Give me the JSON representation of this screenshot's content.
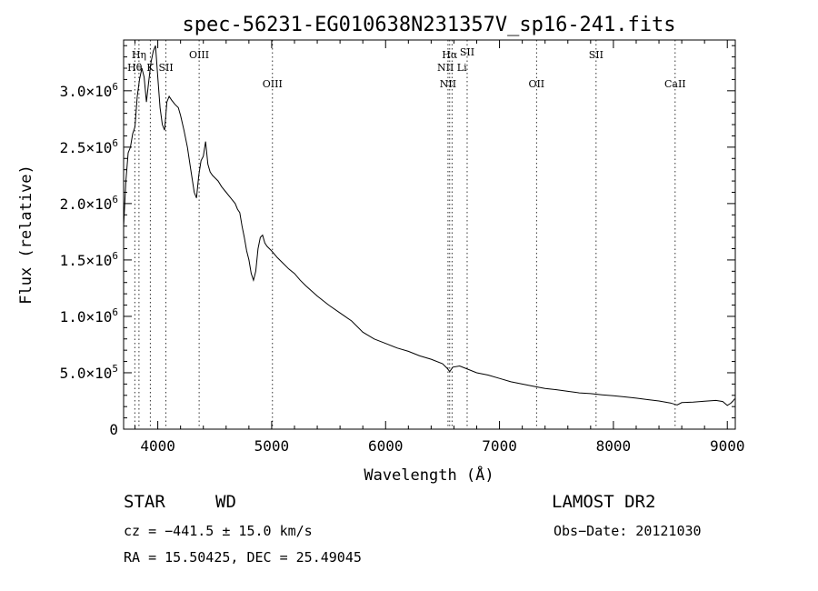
{
  "chart_data": {
    "type": "line",
    "title": "spec-56231-EG010638N231357V_sp16-241.fits",
    "xlabel": "Wavelength (Å)",
    "ylabel": "Flux (relative)",
    "xlim": [
      3700,
      9070
    ],
    "ylim": [
      0,
      3450000
    ],
    "xticks": [
      4000,
      5000,
      6000,
      7000,
      8000,
      9000
    ],
    "xtick_labels": [
      "4000",
      "5000",
      "6000",
      "7000",
      "8000",
      "9000"
    ],
    "yticks": [
      {
        "value": 0,
        "mant": "0",
        "exp": ""
      },
      {
        "value": 500000,
        "mant": "5.0×10",
        "exp": "5"
      },
      {
        "value": 1000000,
        "mant": "1.0×10",
        "exp": "6"
      },
      {
        "value": 1500000,
        "mant": "1.5×10",
        "exp": "6"
      },
      {
        "value": 2000000,
        "mant": "2.0×10",
        "exp": "6"
      },
      {
        "value": 2500000,
        "mant": "2.5×10",
        "exp": "6"
      },
      {
        "value": 3000000,
        "mant": "3.0×10",
        "exp": "6"
      }
    ],
    "series": [
      {
        "x": [
          3700,
          3720,
          3740,
          3760,
          3780,
          3800,
          3820,
          3840,
          3860,
          3880,
          3900,
          3920,
          3940,
          3960,
          3980,
          4000,
          4020,
          4040,
          4060,
          4080,
          4100,
          4120,
          4150,
          4180,
          4200,
          4230,
          4260,
          4290,
          4320,
          4340,
          4360,
          4380,
          4400,
          4420,
          4440,
          4460,
          4480,
          4500,
          4530,
          4560,
          4600,
          4640,
          4680,
          4700,
          4720,
          4740,
          4760,
          4780,
          4800,
          4820,
          4840,
          4860,
          4880,
          4900,
          4920,
          4940,
          4960,
          4980,
          5000,
          5050,
          5100,
          5150,
          5200,
          5250,
          5300,
          5400,
          5500,
          5600,
          5700,
          5800,
          5900,
          6000,
          6100,
          6200,
          6300,
          6400,
          6500,
          6540,
          6563,
          6590,
          6650,
          6700,
          6800,
          6900,
          7000,
          7100,
          7200,
          7300,
          7400,
          7500,
          7600,
          7700,
          7800,
          7900,
          8000,
          8100,
          8200,
          8300,
          8400,
          8500,
          8540,
          8560,
          8600,
          8700,
          8800,
          8900,
          8960,
          9000,
          9030,
          9050,
          9065
        ],
        "y": [
          1800000,
          2200000,
          2450000,
          2500000,
          2620000,
          2680000,
          2950000,
          3100000,
          3200000,
          3120000,
          2900000,
          3080000,
          3250000,
          3350000,
          3400000,
          3120000,
          2850000,
          2700000,
          2650000,
          2900000,
          2950000,
          2920000,
          2880000,
          2850000,
          2780000,
          2650000,
          2500000,
          2300000,
          2100000,
          2050000,
          2250000,
          2380000,
          2420000,
          2550000,
          2350000,
          2280000,
          2250000,
          2230000,
          2200000,
          2150000,
          2100000,
          2050000,
          2000000,
          1950000,
          1920000,
          1800000,
          1700000,
          1580000,
          1500000,
          1380000,
          1320000,
          1400000,
          1600000,
          1700000,
          1720000,
          1650000,
          1620000,
          1600000,
          1580000,
          1520000,
          1470000,
          1420000,
          1380000,
          1320000,
          1270000,
          1180000,
          1100000,
          1030000,
          960000,
          860000,
          800000,
          760000,
          720000,
          690000,
          650000,
          620000,
          580000,
          540000,
          510000,
          550000,
          560000,
          540000,
          500000,
          480000,
          450000,
          420000,
          400000,
          380000,
          360000,
          350000,
          335000,
          322000,
          315000,
          305000,
          296000,
          286000,
          275000,
          262000,
          250000,
          232000,
          220000,
          215000,
          235000,
          240000,
          248000,
          255000,
          245000,
          210000,
          230000,
          250000,
          270000
        ]
      }
    ],
    "line_markers": [
      {
        "name": "Hη",
        "wave": 3835,
        "row": 1
      },
      {
        "name": "Hθ",
        "wave": 3798,
        "row": 2
      },
      {
        "name": "K",
        "wave": 3934,
        "row": 2
      },
      {
        "name": "SII",
        "wave": 4072,
        "row": 2
      },
      {
        "name": "OIII",
        "wave": 4363,
        "row": 1
      },
      {
        "name": "OIII",
        "wave": 5007,
        "row": 3
      },
      {
        "name": "Hα",
        "wave": 6563,
        "row": 1
      },
      {
        "name": "NII Li",
        "wave": 6583,
        "row": 2
      },
      {
        "name": "NII",
        "wave": 6548,
        "row": 3
      },
      {
        "name": "OII",
        "wave": 7325,
        "row": 3
      },
      {
        "name": "SII",
        "wave": 6716,
        "row": 0
      },
      {
        "name": "SII",
        "wave": 7848,
        "row": 1
      },
      {
        "name": "CaII",
        "wave": 8542,
        "row": 3
      }
    ],
    "grid": false
  },
  "info": {
    "class_label": "STAR",
    "subclass_label": "WD",
    "survey": "LAMOST DR2",
    "cz": "cz = −441.5 ± 15.0 km/s",
    "obs_date": "Obs−Date: 20121030",
    "coords": "RA =  15.50425, DEC =  25.49045"
  }
}
